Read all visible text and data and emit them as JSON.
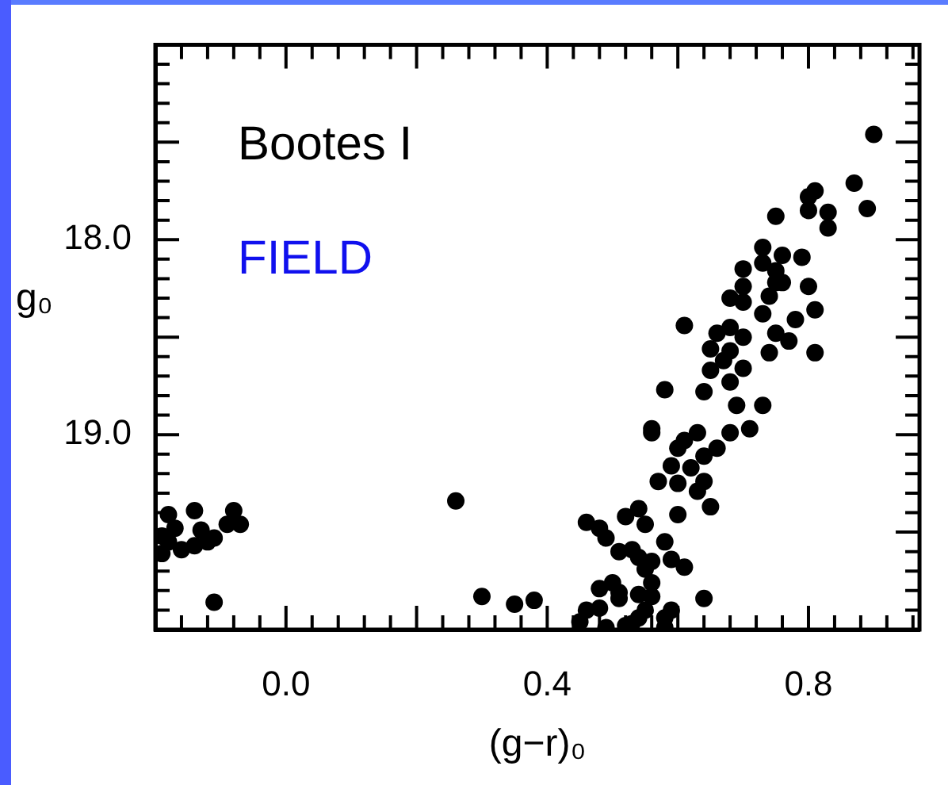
{
  "chart_data": {
    "type": "scatter",
    "xlabel": "(g−r)₀",
    "ylabel": "g₀",
    "annotations": [
      "Bootes I",
      "FIELD"
    ],
    "xlim": [
      -0.2,
      0.97
    ],
    "ylim": [
      20.0,
      17.0
    ],
    "xticks": [
      {
        "value": -0.2,
        "label": null
      },
      {
        "value": -0.16,
        "label": null
      },
      {
        "value": -0.12,
        "label": null
      },
      {
        "value": -0.08,
        "label": null
      },
      {
        "value": -0.04,
        "label": null
      },
      {
        "value": 0,
        "label": "0.0"
      },
      {
        "value": 0.04,
        "label": null
      },
      {
        "value": 0.08,
        "label": null
      },
      {
        "value": 0.12,
        "label": null
      },
      {
        "value": 0.16,
        "label": null
      },
      {
        "value": 0.2,
        "label": null
      },
      {
        "value": 0.24,
        "label": null
      },
      {
        "value": 0.28,
        "label": null
      },
      {
        "value": 0.32,
        "label": null
      },
      {
        "value": 0.36,
        "label": null
      },
      {
        "value": 0.4,
        "label": "0.4"
      },
      {
        "value": 0.44,
        "label": null
      },
      {
        "value": 0.48,
        "label": null
      },
      {
        "value": 0.52,
        "label": null
      },
      {
        "value": 0.56,
        "label": null
      },
      {
        "value": 0.6,
        "label": null
      },
      {
        "value": 0.64,
        "label": null
      },
      {
        "value": 0.68,
        "label": null
      },
      {
        "value": 0.72,
        "label": null
      },
      {
        "value": 0.76,
        "label": null
      },
      {
        "value": 0.8,
        "label": "0.8"
      },
      {
        "value": 0.84,
        "label": null
      },
      {
        "value": 0.88,
        "label": null
      },
      {
        "value": 0.92,
        "label": null
      },
      {
        "value": 0.96,
        "label": null
      }
    ],
    "yticks": [
      {
        "value": 17.0,
        "label": null
      },
      {
        "value": 17.1,
        "label": null
      },
      {
        "value": 17.2,
        "label": null
      },
      {
        "value": 17.3,
        "label": null
      },
      {
        "value": 17.4,
        "label": null
      },
      {
        "value": 17.5,
        "label": null
      },
      {
        "value": 17.6,
        "label": null
      },
      {
        "value": 17.7,
        "label": null
      },
      {
        "value": 17.8,
        "label": null
      },
      {
        "value": 17.9,
        "label": null
      },
      {
        "value": 18.0,
        "label": "18.0"
      },
      {
        "value": 18.1,
        "label": null
      },
      {
        "value": 18.2,
        "label": null
      },
      {
        "value": 18.3,
        "label": null
      },
      {
        "value": 18.4,
        "label": null
      },
      {
        "value": 18.5,
        "label": null
      },
      {
        "value": 18.6,
        "label": null
      },
      {
        "value": 18.7,
        "label": null
      },
      {
        "value": 18.8,
        "label": null
      },
      {
        "value": 18.9,
        "label": null
      },
      {
        "value": 19.0,
        "label": "19.0"
      },
      {
        "value": 19.1,
        "label": null
      },
      {
        "value": 19.2,
        "label": null
      },
      {
        "value": 19.3,
        "label": null
      },
      {
        "value": 19.4,
        "label": null
      },
      {
        "value": 19.5,
        "label": null
      },
      {
        "value": 19.6,
        "label": null
      },
      {
        "value": 19.7,
        "label": null
      },
      {
        "value": 19.8,
        "label": null
      },
      {
        "value": 19.9,
        "label": null
      },
      {
        "value": 20.0,
        "label": null
      }
    ],
    "marker": "circle",
    "color": "#000000",
    "x": [
      -0.18,
      -0.14,
      -0.08,
      -0.07,
      -0.09,
      -0.17,
      -0.19,
      -0.16,
      -0.19,
      -0.14,
      -0.13,
      -0.12,
      -0.11,
      -0.18,
      -0.11,
      0.26,
      0.9,
      0.87,
      0.89,
      0.81,
      0.8,
      0.8,
      0.83,
      0.83,
      0.75,
      0.73,
      0.76,
      0.79,
      0.7,
      0.73,
      0.75,
      0.75,
      0.76,
      0.8,
      0.7,
      0.68,
      0.7,
      0.74,
      0.81,
      0.73,
      0.78,
      0.61,
      0.66,
      0.68,
      0.7,
      0.75,
      0.77,
      0.65,
      0.68,
      0.74,
      0.81,
      0.67,
      0.65,
      0.7,
      0.68,
      0.58,
      0.64,
      0.69,
      0.73,
      0.56,
      0.56,
      0.61,
      0.63,
      0.6,
      0.68,
      0.71,
      0.66,
      0.64,
      0.59,
      0.62,
      0.57,
      0.6,
      0.64,
      0.63,
      0.65,
      0.6,
      0.54,
      0.52,
      0.55,
      0.46,
      0.48,
      0.49,
      0.58,
      0.51,
      0.53,
      0.54,
      0.56,
      0.59,
      0.61,
      0.55,
      0.5,
      0.48,
      0.56,
      0.51,
      0.54,
      0.56,
      0.51,
      0.64,
      0.3,
      0.35,
      0.38,
      0.46,
      0.48,
      0.45,
      0.55,
      0.54,
      0.59,
      0.58,
      0.49,
      0.52,
      0.58,
      0.53
    ],
    "values": [
      19.41,
      19.39,
      19.39,
      19.46,
      19.46,
      19.48,
      19.52,
      19.59,
      19.61,
      19.57,
      19.49,
      19.55,
      19.53,
      19.55,
      19.86,
      19.34,
      17.46,
      17.71,
      17.84,
      17.75,
      17.78,
      17.85,
      17.86,
      17.94,
      17.88,
      18.04,
      18.08,
      18.09,
      18.15,
      18.12,
      18.16,
      18.22,
      18.22,
      18.24,
      18.24,
      18.3,
      18.32,
      18.29,
      18.36,
      18.38,
      18.41,
      18.44,
      18.48,
      18.45,
      18.5,
      18.48,
      18.52,
      18.56,
      18.57,
      18.58,
      18.58,
      18.62,
      18.67,
      18.66,
      18.73,
      18.77,
      18.78,
      18.85,
      18.85,
      18.97,
      18.99,
      19.03,
      18.99,
      19.07,
      18.99,
      18.97,
      19.07,
      19.11,
      19.16,
      19.17,
      19.24,
      19.25,
      19.24,
      19.29,
      19.37,
      19.41,
      19.38,
      19.42,
      19.46,
      19.45,
      19.48,
      19.53,
      19.55,
      19.6,
      19.59,
      19.63,
      19.65,
      19.64,
      19.68,
      19.69,
      19.76,
      19.79,
      19.76,
      19.81,
      19.82,
      19.83,
      19.84,
      19.84,
      19.83,
      19.87,
      19.85,
      19.9,
      19.89,
      19.96,
      19.9,
      19.94,
      19.9,
      19.94,
      19.99,
      19.98,
      19.99,
      19.97
    ]
  }
}
